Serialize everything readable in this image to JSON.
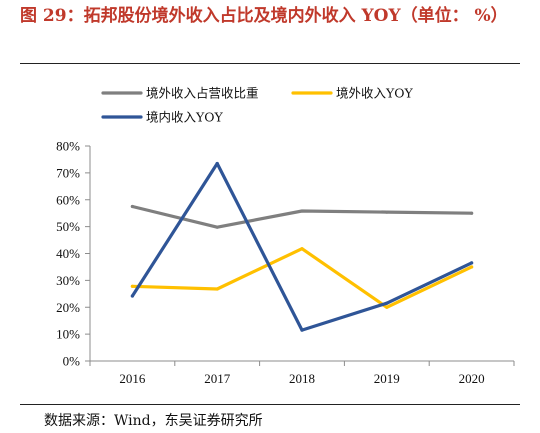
{
  "figure": {
    "title": "图 29：拓邦股份境外收入占比及境内外收入 YOY（单位： %）",
    "source": "数据来源：Wind，东吴证券研究所"
  },
  "chart_data": {
    "type": "line",
    "categories": [
      "2016",
      "2017",
      "2018",
      "2019",
      "2020"
    ],
    "ylim": [
      0,
      80
    ],
    "yticks": [
      "0%",
      "10%",
      "20%",
      "30%",
      "40%",
      "50%",
      "60%",
      "70%",
      "80%"
    ],
    "grid": false,
    "legend_position": "top",
    "series": [
      {
        "name": "境外收入占营收比重",
        "color": "#7f7f7f",
        "values": [
          57.5,
          49.8,
          55.8,
          55.4,
          55.0
        ]
      },
      {
        "name": "境外收入YOY",
        "color": "#ffc000",
        "values": [
          27.8,
          26.8,
          41.8,
          20.0,
          35.0
        ]
      },
      {
        "name": "境内收入YOY",
        "color": "#2f5597",
        "values": [
          24.2,
          73.5,
          11.5,
          21.5,
          36.5
        ]
      }
    ]
  }
}
